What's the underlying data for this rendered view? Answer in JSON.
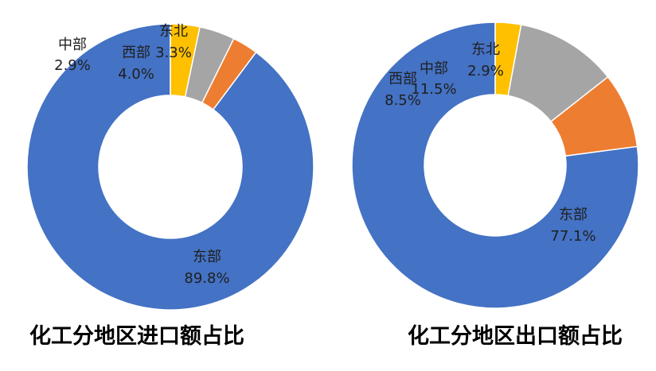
{
  "chart_data": [
    {
      "type": "pie",
      "style": "donut",
      "title": "化工分地区进口额占比",
      "categories": [
        "东部",
        "中部",
        "西部",
        "东北"
      ],
      "values": [
        89.8,
        2.9,
        4.0,
        3.3
      ],
      "value_labels": [
        "89.8%",
        "2.9%",
        "4.0%",
        "3.3%"
      ],
      "colors": [
        "#4472C4",
        "#ED7D31",
        "#A5A5A5",
        "#FFC000"
      ],
      "start_angle": "12 o'clock",
      "direction": "counter-clockwise",
      "legend": "none"
    },
    {
      "type": "pie",
      "style": "donut",
      "title": "化工分地区出口额占比",
      "categories": [
        "东部",
        "西部",
        "中部",
        "东北"
      ],
      "values": [
        77.1,
        8.5,
        11.5,
        2.9
      ],
      "value_labels": [
        "77.1%",
        "8.5%",
        "11.5%",
        "2.9%"
      ],
      "colors": [
        "#4472C4",
        "#ED7D31",
        "#A5A5A5",
        "#FFC000"
      ],
      "start_angle": "12 o'clock",
      "direction": "counter-clockwise",
      "legend": "none"
    }
  ]
}
